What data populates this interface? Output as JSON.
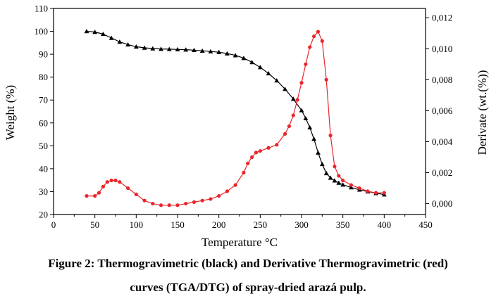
{
  "caption": {
    "line1": "Figure 2: Thermogravimetric (black) and Derivative Thermogravimetric (red)",
    "line2": "curves (TGA/DTG) of spray-dried arazá pulp."
  },
  "chart_data": {
    "type": "line",
    "xlabel": "Temperature °C",
    "ylabel_left": "Weight (%)",
    "ylabel_right": "Derivate (wt.(%))",
    "xlim": [
      0,
      450
    ],
    "ylim_left": [
      20,
      110
    ],
    "ylim_right": [
      -0.0007,
      0.0126
    ],
    "x_ticks": [
      0,
      50,
      100,
      150,
      200,
      250,
      300,
      350,
      400,
      450
    ],
    "y_left_ticks": [
      20,
      30,
      40,
      50,
      60,
      70,
      80,
      90,
      100,
      110
    ],
    "y_right_ticks": [
      0.0,
      0.002,
      0.004,
      0.006,
      0.008,
      0.01,
      0.012
    ],
    "y_right_tick_labels": [
      "0,000",
      "0,002",
      "0,004",
      "0,006",
      "0,008",
      "0,010",
      "0,012"
    ],
    "grid": false,
    "colors": {
      "tga": "#000000",
      "dtg": "#e8262b",
      "axis": "#000000"
    },
    "series": [
      {
        "axis": "left",
        "marker": "triangle",
        "x": [
          40,
          50,
          60,
          70,
          80,
          90,
          100,
          110,
          120,
          130,
          140,
          150,
          160,
          170,
          180,
          190,
          200,
          210,
          220,
          230,
          240,
          250,
          260,
          270,
          280,
          290,
          300,
          305,
          310,
          315,
          320,
          325,
          330,
          335,
          340,
          345,
          350,
          360,
          370,
          380,
          390,
          400
        ],
        "values": [
          100,
          99.7,
          98.8,
          97.1,
          95.4,
          94.2,
          93.3,
          92.8,
          92.5,
          92.3,
          92.2,
          92.1,
          92.0,
          91.8,
          91.5,
          91.2,
          90.9,
          90.3,
          89.5,
          88.3,
          86.5,
          84.3,
          81.6,
          78.5,
          74.8,
          70.5,
          65.5,
          62.0,
          58.0,
          53.0,
          47.0,
          42.0,
          38.0,
          36.0,
          34.8,
          33.8,
          33.0,
          31.8,
          30.8,
          30.0,
          29.3,
          28.7
        ]
      },
      {
        "axis": "right",
        "marker": "circle",
        "x": [
          40,
          50,
          55,
          60,
          65,
          70,
          75,
          80,
          90,
          100,
          110,
          120,
          130,
          140,
          150,
          160,
          170,
          180,
          190,
          200,
          210,
          220,
          230,
          235,
          240,
          245,
          250,
          260,
          270,
          280,
          285,
          290,
          295,
          300,
          305,
          310,
          315,
          320,
          325,
          330,
          335,
          340,
          345,
          350,
          360,
          370,
          380,
          390,
          400
        ],
        "values": [
          0.0005,
          0.0005,
          0.0007,
          0.0011,
          0.0014,
          0.0015,
          0.0015,
          0.0014,
          0.001,
          0.0006,
          0.0002,
          0.0,
          -0.0001,
          -0.0001,
          -0.0001,
          0.0,
          0.0001,
          0.0002,
          0.0003,
          0.0005,
          0.0008,
          0.0012,
          0.002,
          0.0026,
          0.003,
          0.0033,
          0.0034,
          0.0036,
          0.0038,
          0.0045,
          0.005,
          0.0057,
          0.0067,
          0.0078,
          0.009,
          0.0101,
          0.0108,
          0.0111,
          0.0105,
          0.008,
          0.0044,
          0.0024,
          0.0018,
          0.0015,
          0.0012,
          0.001,
          0.0008,
          0.0007,
          0.0007
        ]
      }
    ]
  }
}
